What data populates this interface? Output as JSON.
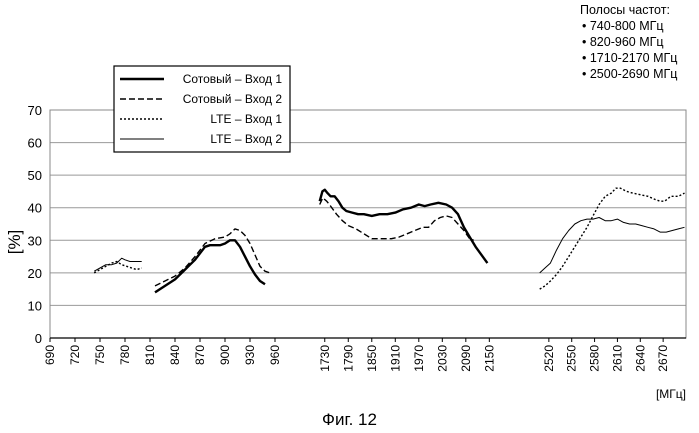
{
  "bands_panel": {
    "title": "Полосы частот:",
    "items": [
      "• 740-800 МГц",
      "• 820-960 МГц",
      "• 1710-2170 МГц",
      "• 2500-2690 МГц"
    ]
  },
  "caption": "Фиг. 12",
  "chart_data": {
    "type": "line",
    "title": "",
    "xlabel": "[МГц]",
    "ylabel": "[%]",
    "ylim": [
      0,
      70
    ],
    "yticks": [
      0,
      10,
      20,
      30,
      40,
      50,
      60,
      70
    ],
    "grid": "horizontal",
    "legend_position": "top-left",
    "segments": [
      {
        "xlim": [
          690,
          960
        ],
        "ticks": [
          "690",
          "720",
          "750",
          "780",
          "810",
          "840",
          "870",
          "900",
          "930",
          "960"
        ]
      },
      {
        "xlim": [
          1700,
          2190
        ],
        "ticks": [
          "1730",
          "1790",
          "1850",
          "1910",
          "1970",
          "2030",
          "2090",
          "2150"
        ]
      },
      {
        "xlim": [
          2490,
          2700
        ],
        "ticks": [
          "2520",
          "2550",
          "2580",
          "2610",
          "2640",
          "2670"
        ]
      }
    ],
    "series": [
      {
        "name": "Сотовый – Вход 1",
        "style": "thick",
        "points": [
          [
            816,
            14
          ],
          [
            822,
            15
          ],
          [
            828,
            16
          ],
          [
            834,
            17
          ],
          [
            840,
            18
          ],
          [
            846,
            19.5
          ],
          [
            852,
            21
          ],
          [
            858,
            22.5
          ],
          [
            864,
            24
          ],
          [
            870,
            26
          ],
          [
            876,
            28
          ],
          [
            882,
            28.5
          ],
          [
            888,
            28.5
          ],
          [
            894,
            28.5
          ],
          [
            900,
            29
          ],
          [
            906,
            30
          ],
          [
            912,
            30
          ],
          [
            918,
            28
          ],
          [
            924,
            25
          ],
          [
            930,
            22
          ],
          [
            936,
            19.5
          ],
          [
            942,
            17.5
          ],
          [
            948,
            16.5
          ],
          [
            1717,
            42
          ],
          [
            1724,
            45
          ],
          [
            1730,
            45.5
          ],
          [
            1737,
            44.5
          ],
          [
            1745,
            43.5
          ],
          [
            1755,
            43.5
          ],
          [
            1765,
            42
          ],
          [
            1775,
            40
          ],
          [
            1785,
            39
          ],
          [
            1800,
            38.5
          ],
          [
            1815,
            38
          ],
          [
            1830,
            38
          ],
          [
            1850,
            37.5
          ],
          [
            1870,
            38
          ],
          [
            1890,
            38
          ],
          [
            1910,
            38.5
          ],
          [
            1930,
            39.5
          ],
          [
            1950,
            40
          ],
          [
            1960,
            40.5
          ],
          [
            1970,
            41
          ],
          [
            1985,
            40.5
          ],
          [
            2000,
            41
          ],
          [
            2020,
            41.5
          ],
          [
            2040,
            41
          ],
          [
            2055,
            40
          ],
          [
            2070,
            38
          ],
          [
            2085,
            34
          ],
          [
            2100,
            31
          ],
          [
            2115,
            28
          ],
          [
            2130,
            25.5
          ],
          [
            2145,
            23
          ]
        ]
      },
      {
        "name": "Сотовый – Вход 2",
        "style": "dashed",
        "points": [
          [
            816,
            16
          ],
          [
            828,
            17.5
          ],
          [
            840,
            19
          ],
          [
            852,
            21.5
          ],
          [
            864,
            25
          ],
          [
            876,
            29
          ],
          [
            888,
            30.5
          ],
          [
            900,
            31
          ],
          [
            906,
            32
          ],
          [
            912,
            33.5
          ],
          [
            918,
            33
          ],
          [
            924,
            31.5
          ],
          [
            930,
            29
          ],
          [
            936,
            25.5
          ],
          [
            942,
            22
          ],
          [
            948,
            20.5
          ],
          [
            954,
            20
          ],
          [
            1717,
            41
          ],
          [
            1725,
            43
          ],
          [
            1735,
            42
          ],
          [
            1745,
            40.5
          ],
          [
            1760,
            38
          ],
          [
            1775,
            36
          ],
          [
            1790,
            34.5
          ],
          [
            1810,
            33.5
          ],
          [
            1830,
            32
          ],
          [
            1850,
            30.5
          ],
          [
            1865,
            30.5
          ],
          [
            1880,
            30.5
          ],
          [
            1900,
            30.5
          ],
          [
            1920,
            31
          ],
          [
            1940,
            32
          ],
          [
            1960,
            33
          ],
          [
            1980,
            34
          ],
          [
            1995,
            34
          ],
          [
            2010,
            36
          ],
          [
            2025,
            37
          ],
          [
            2040,
            37.5
          ],
          [
            2055,
            37
          ],
          [
            2070,
            35
          ],
          [
            2085,
            33
          ],
          [
            2100,
            30.5
          ],
          [
            2110,
            30
          ]
        ]
      },
      {
        "name": "LTE – Вход 1",
        "style": "dotted",
        "points": [
          [
            743,
            20
          ],
          [
            750,
            21
          ],
          [
            757,
            22
          ],
          [
            764,
            23
          ],
          [
            770,
            23.5
          ],
          [
            776,
            22.5
          ],
          [
            782,
            22
          ],
          [
            788,
            21.5
          ],
          [
            794,
            21
          ],
          [
            800,
            21.5
          ],
          [
            2508,
            15
          ],
          [
            2515,
            16
          ],
          [
            2522,
            17.5
          ],
          [
            2530,
            19.5
          ],
          [
            2538,
            22
          ],
          [
            2546,
            25
          ],
          [
            2554,
            28
          ],
          [
            2562,
            31
          ],
          [
            2570,
            34
          ],
          [
            2578,
            37.5
          ],
          [
            2586,
            41
          ],
          [
            2594,
            43.5
          ],
          [
            2602,
            44.5
          ],
          [
            2608,
            46
          ],
          [
            2614,
            46
          ],
          [
            2622,
            45
          ],
          [
            2630,
            44.5
          ],
          [
            2640,
            44
          ],
          [
            2650,
            43.5
          ],
          [
            2660,
            42.5
          ],
          [
            2666,
            42
          ],
          [
            2672,
            42
          ],
          [
            2680,
            43.5
          ],
          [
            2690,
            43.5
          ],
          [
            2698,
            44.5
          ]
        ]
      },
      {
        "name": "LTE – Вход 2",
        "style": "thin",
        "points": [
          [
            743,
            20.5
          ],
          [
            750,
            21.5
          ],
          [
            757,
            22.5
          ],
          [
            764,
            22.5
          ],
          [
            770,
            23
          ],
          [
            776,
            24.5
          ],
          [
            780,
            24
          ],
          [
            786,
            23.5
          ],
          [
            792,
            23.5
          ],
          [
            800,
            23.5
          ],
          [
            2508,
            20
          ],
          [
            2515,
            21.5
          ],
          [
            2522,
            23
          ],
          [
            2530,
            27
          ],
          [
            2538,
            30.5
          ],
          [
            2546,
            33
          ],
          [
            2554,
            35
          ],
          [
            2562,
            36
          ],
          [
            2570,
            36.5
          ],
          [
            2578,
            36.5
          ],
          [
            2586,
            37
          ],
          [
            2594,
            36
          ],
          [
            2602,
            36
          ],
          [
            2610,
            36.5
          ],
          [
            2618,
            35.5
          ],
          [
            2626,
            35
          ],
          [
            2634,
            35
          ],
          [
            2642,
            34.5
          ],
          [
            2650,
            34
          ],
          [
            2658,
            33.5
          ],
          [
            2666,
            32.5
          ],
          [
            2674,
            32.5
          ],
          [
            2682,
            33
          ],
          [
            2690,
            33.5
          ],
          [
            2698,
            34
          ]
        ]
      }
    ]
  }
}
